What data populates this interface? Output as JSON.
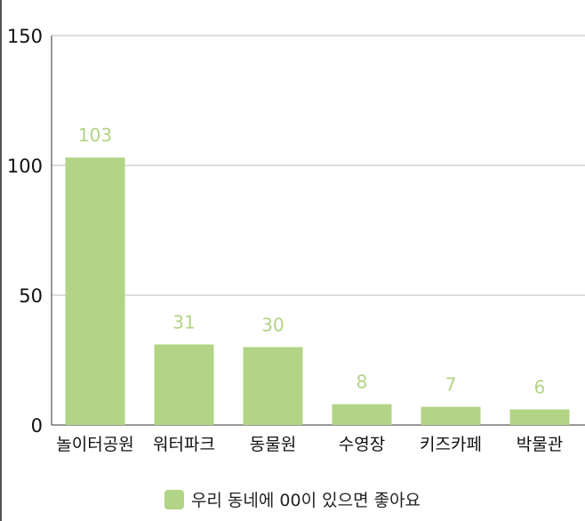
{
  "chart_data": {
    "type": "bar",
    "title": "",
    "xlabel": "",
    "ylabel": "",
    "categories": [
      "놀이터공원",
      "워터파크",
      "동물원",
      "수영장",
      "키즈카페",
      "박물관"
    ],
    "series": [
      {
        "name": "우리 동네에 00이 있으면 좋아요",
        "values": [
          103,
          31,
          30,
          8,
          7,
          6
        ],
        "color": "#b1d486"
      }
    ],
    "ylim": [
      0,
      150
    ],
    "yticks": [
      0,
      50,
      100,
      150
    ],
    "grid": true,
    "data_labels": true,
    "data_label_color": "#b1d486",
    "legend_position": "bottom"
  }
}
